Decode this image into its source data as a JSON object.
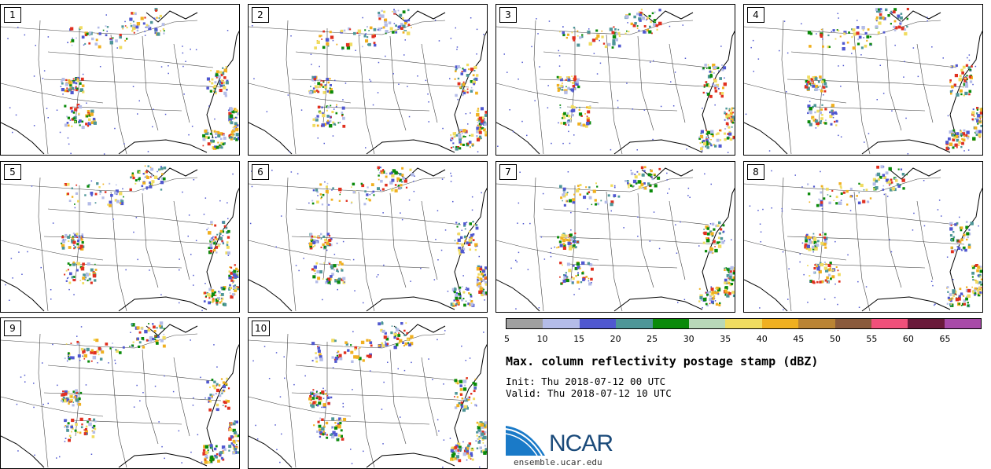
{
  "panels": [
    {
      "label": "1"
    },
    {
      "label": "2"
    },
    {
      "label": "3"
    },
    {
      "label": "4"
    },
    {
      "label": "5"
    },
    {
      "label": "6"
    },
    {
      "label": "7"
    },
    {
      "label": "8"
    },
    {
      "label": "9"
    },
    {
      "label": "10"
    }
  ],
  "colorbar": {
    "colors": [
      "#a0a0a0",
      "#b4bce8",
      "#5058d0",
      "#4e9698",
      "#0a8a0a",
      "#b8d8b8",
      "#f0dc60",
      "#f0b020",
      "#ba8434",
      "#8a5a3c",
      "#f0507a",
      "#6a1a3a",
      "#a84aa8"
    ],
    "ticks": [
      "5",
      "10",
      "15",
      "20",
      "25",
      "30",
      "35",
      "40",
      "45",
      "50",
      "55",
      "60",
      "65"
    ]
  },
  "title": "Max. column reflectivity postage stamp (dBZ)",
  "init_label": "Init:",
  "init_value": "Thu 2018-07-12 00 UTC",
  "valid_label": "Valid:",
  "valid_value": "Thu 2018-07-12 10 UTC",
  "logo": "NCAR",
  "website": "ensemble.ucar.edu"
}
